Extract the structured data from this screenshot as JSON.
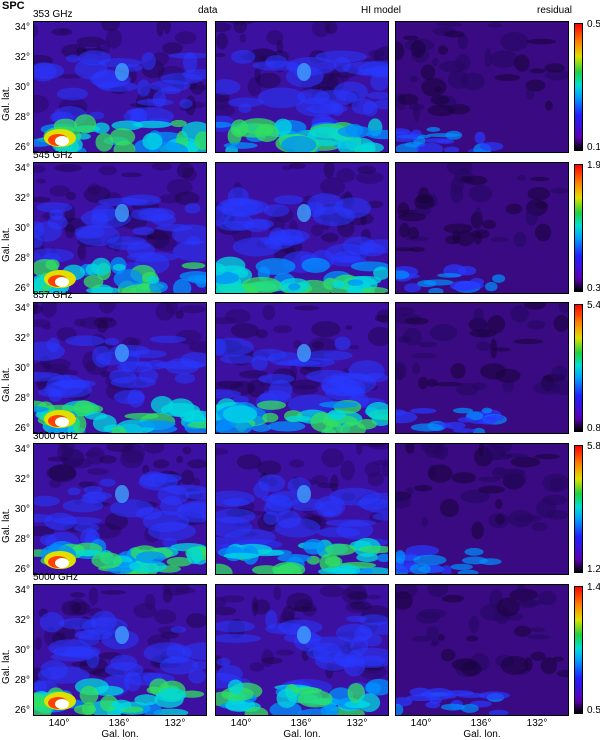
{
  "figure": {
    "title": "SPC",
    "columns": [
      "data",
      "HI model",
      "residual"
    ],
    "rows": [
      {
        "frequency": "353 GHz",
        "cbar_max": "0.55",
        "cbar_min": "0.14"
      },
      {
        "frequency": "545 GHz",
        "cbar_max": "1.96",
        "cbar_min": "0.36"
      },
      {
        "frequency": "857 GHz",
        "cbar_max": "5.43",
        "cbar_min": "0.88"
      },
      {
        "frequency": "3000 GHz",
        "cbar_max": "5.80",
        "cbar_min": "1.28"
      },
      {
        "frequency": "5000 GHz",
        "cbar_max": "1.46",
        "cbar_min": "0.51"
      }
    ],
    "y_ticks": [
      "34°",
      "32°",
      "30°",
      "28°",
      "26°"
    ],
    "x_ticks": [
      "140°",
      "136°",
      "132°"
    ],
    "y_axis_label": "Gal. lat.",
    "x_axis_label": "Gal. lon."
  },
  "colors": {
    "background_dark": "#3a0a78",
    "mid": "#3040ff",
    "bright": "#00c8ff",
    "hot": "#ff2000"
  }
}
